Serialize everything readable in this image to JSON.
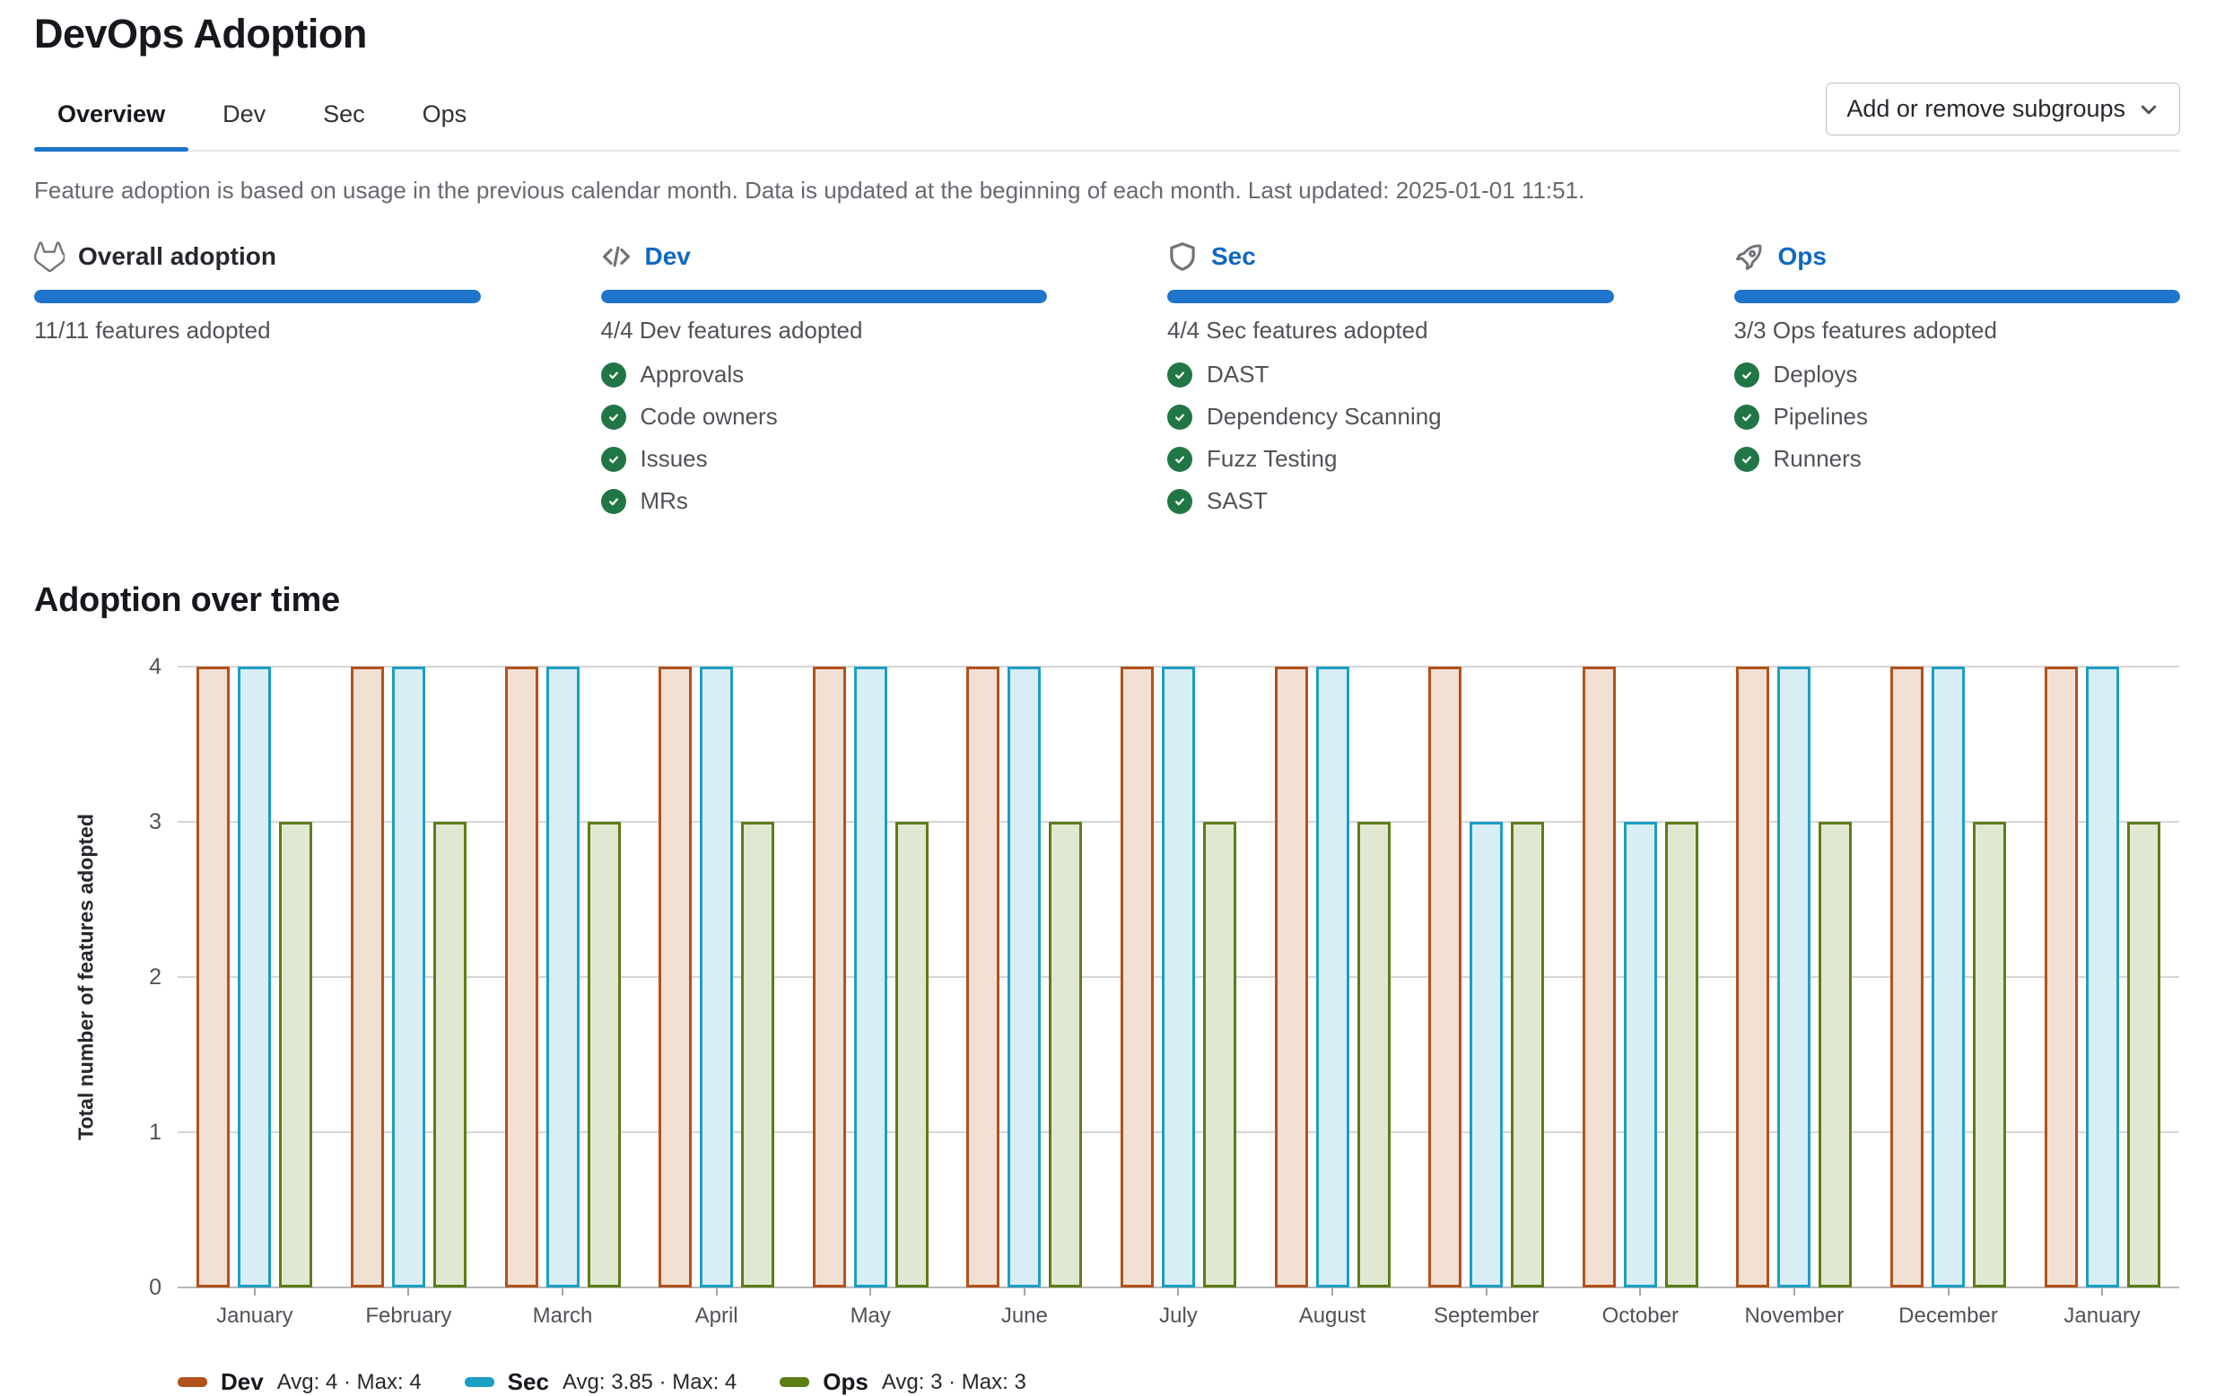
{
  "page": {
    "title": "DevOps Adoption"
  },
  "tabs": [
    {
      "label": "Overview",
      "active": true
    },
    {
      "label": "Dev",
      "active": false
    },
    {
      "label": "Sec",
      "active": false
    },
    {
      "label": "Ops",
      "active": false
    }
  ],
  "toolbar": {
    "subgroups_button_label": "Add or remove subgroups"
  },
  "description": "Feature adoption is based on usage in the previous calendar month. Data is updated at the beginning of each month. Last updated: 2025-01-01 11:51.",
  "cards": [
    {
      "title": "Overall adoption",
      "icon": "tanuki-icon",
      "is_link": false,
      "progress_percent": 100,
      "caption": "11/11 features adopted",
      "features": []
    },
    {
      "title": "Dev",
      "icon": "code-icon",
      "is_link": true,
      "progress_percent": 100,
      "caption": "4/4 Dev features adopted",
      "features": [
        "Approvals",
        "Code owners",
        "Issues",
        "MRs"
      ]
    },
    {
      "title": "Sec",
      "icon": "shield-icon",
      "is_link": true,
      "progress_percent": 100,
      "caption": "4/4 Sec features adopted",
      "features": [
        "DAST",
        "Dependency Scanning",
        "Fuzz Testing",
        "SAST"
      ]
    },
    {
      "title": "Ops",
      "icon": "rocket-icon",
      "is_link": true,
      "progress_percent": 100,
      "caption": "3/3 Ops features adopted",
      "features": [
        "Deploys",
        "Pipelines",
        "Runners"
      ]
    }
  ],
  "section_title": "Adoption over time",
  "colors": {
    "accent_blue": "#1f75cb",
    "link_blue": "#1068bf",
    "success_green": "#217645"
  },
  "chart_data": {
    "type": "bar",
    "title": "Adoption over time",
    "categories": [
      "January",
      "February",
      "March",
      "April",
      "May",
      "June",
      "July",
      "August",
      "September",
      "October",
      "November",
      "December",
      "January"
    ],
    "series": [
      {
        "name": "Dev",
        "color": "#b2521b",
        "fill": "#f3e0d4",
        "values": [
          4,
          4,
          4,
          4,
          4,
          4,
          4,
          4,
          4,
          4,
          4,
          4,
          4
        ],
        "stats": "Avg: 4 · Max: 4"
      },
      {
        "name": "Sec",
        "color": "#1b9fc3",
        "fill": "#d9edf4",
        "values": [
          4,
          4,
          4,
          4,
          4,
          4,
          4,
          4,
          3,
          3,
          4,
          4,
          4
        ],
        "stats": "Avg: 3.85 · Max: 4"
      },
      {
        "name": "Ops",
        "color": "#5d7d16",
        "fill": "#e0e8d1",
        "values": [
          3,
          3,
          3,
          3,
          3,
          3,
          3,
          3,
          3,
          3,
          3,
          3,
          3
        ],
        "stats": "Avg: 3 · Max: 3"
      }
    ],
    "xlabel": "",
    "ylabel": "Total number of features adopted",
    "ylim": [
      0,
      4
    ],
    "yticks": [
      0,
      1,
      2,
      3,
      4
    ],
    "grid": true,
    "legend_position": "bottom"
  }
}
